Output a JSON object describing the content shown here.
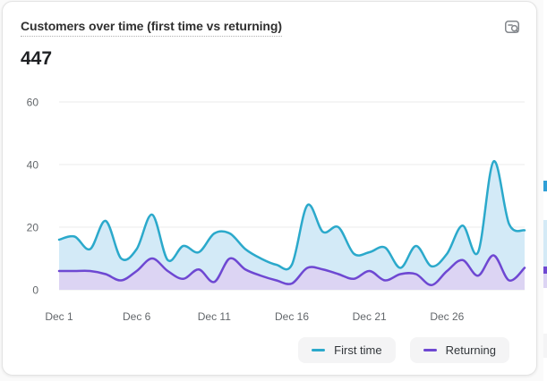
{
  "card": {
    "title": "Customers over time (first time vs returning)",
    "metric_value": "447"
  },
  "chart_data": {
    "type": "area",
    "title": "Customers over time (first time vs returning)",
    "categories": [
      "Dec 1",
      "Dec 2",
      "Dec 3",
      "Dec 4",
      "Dec 5",
      "Dec 6",
      "Dec 7",
      "Dec 8",
      "Dec 9",
      "Dec 10",
      "Dec 11",
      "Dec 12",
      "Dec 13",
      "Dec 14",
      "Dec 15",
      "Dec 16",
      "Dec 17",
      "Dec 18",
      "Dec 19",
      "Dec 20",
      "Dec 21",
      "Dec 22",
      "Dec 23",
      "Dec 24",
      "Dec 25",
      "Dec 26",
      "Dec 27",
      "Dec 28",
      "Dec 29",
      "Dec 30",
      "Dec 31"
    ],
    "series": [
      {
        "name": "First time",
        "color": "#2BA9CB",
        "fill": "#D3EAF7",
        "values": [
          16,
          17,
          13,
          22,
          10,
          13,
          24,
          9.5,
          14,
          12,
          18,
          18,
          13,
          10,
          8,
          8,
          27,
          18.5,
          20,
          11.5,
          12,
          13.5,
          7,
          14,
          7.5,
          11.5,
          20.5,
          12,
          41,
          21,
          19
        ]
      },
      {
        "name": "Returning",
        "color": "#6E48D2",
        "fill": "#DCD4F3",
        "values": [
          6,
          6,
          6,
          5,
          3,
          6,
          10,
          6,
          3.5,
          6.5,
          2.5,
          10,
          6.5,
          4.5,
          3,
          2,
          7,
          6.5,
          5,
          3.5,
          6,
          3,
          5,
          5,
          1.5,
          6,
          9.5,
          4.5,
          11,
          3,
          7
        ]
      }
    ],
    "ylim": [
      0,
      60
    ],
    "y_ticks": [
      0,
      20,
      40,
      60
    ],
    "x_tick_labels": [
      "Dec 1",
      "Dec 6",
      "Dec 11",
      "Dec 16",
      "Dec 21",
      "Dec 26"
    ],
    "x_tick_indices": [
      0,
      5,
      10,
      15,
      20,
      25
    ],
    "grid": "horizontal",
    "legend_position": "bottom-right"
  }
}
